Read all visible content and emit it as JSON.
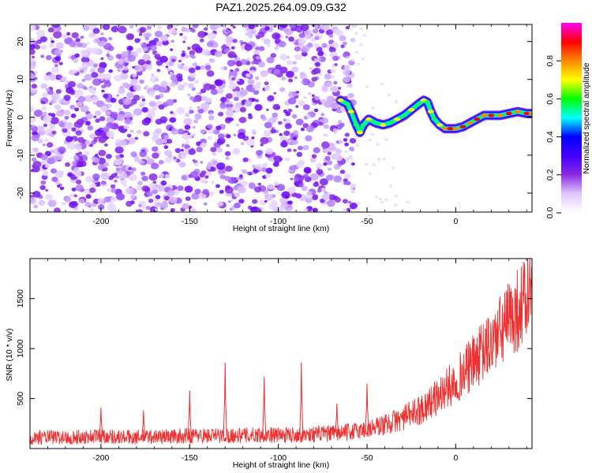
{
  "title": "PAZ1.2025.264.09.09.G32",
  "chart_data": [
    {
      "type": "heatmap",
      "xlabel": "Height of straight line (km)",
      "ylabel": "Frequency (Hz)",
      "xlim": [
        -240,
        43
      ],
      "ylim": [
        -25,
        24.5
      ],
      "x_ticks": [
        -200,
        -150,
        -100,
        -50,
        0
      ],
      "x_tick_labels": [
        "-200",
        "-150",
        "-100",
        "-50",
        "0"
      ],
      "y_ticks": [
        20,
        10,
        0,
        -10,
        -20
      ],
      "y_tick_labels": [
        "20",
        "10",
        "0",
        "-10",
        "-20"
      ],
      "noise_region_km": [
        -240,
        -62
      ],
      "signal_trace": {
        "x": [
          -65,
          -61,
          -59,
          -56,
          -54,
          -52,
          -49,
          -45,
          -41,
          -37,
          -33,
          -29,
          -25,
          -21,
          -18,
          -16,
          -14,
          -12,
          -9,
          -6,
          -3,
          0,
          4,
          8,
          12,
          16,
          20,
          25,
          30,
          35,
          40,
          43
        ],
        "y": [
          4.5,
          3.5,
          1.5,
          -2.0,
          -4.0,
          -2.0,
          -0.5,
          -1.5,
          -2.0,
          -1.5,
          -0.5,
          0.5,
          2.0,
          3.5,
          4.5,
          4.0,
          1.5,
          -0.5,
          -2.0,
          -3.0,
          -3.0,
          -3.0,
          -2.5,
          -1.5,
          -0.5,
          0.5,
          0.5,
          0.5,
          1.0,
          1.5,
          1.0,
          1.0
        ]
      },
      "colorbar": {
        "label": "Normalized spectral amplitude",
        "range": [
          0,
          1
        ],
        "ticks": [
          0.0,
          0.2,
          0.4,
          0.6,
          0.8
        ],
        "tick_labels": [
          "0.0",
          "0.2",
          "0.4",
          "0.6",
          "0.8"
        ],
        "colors": [
          "#ffffff",
          "#e0c8ff",
          "#8a2be2",
          "#4400ff",
          "#0000ff",
          "#00ffff",
          "#00ff00",
          "#ffff00",
          "#ff8800",
          "#ff0000",
          "#ff00ff"
        ]
      }
    },
    {
      "type": "line",
      "xlabel": "Height of straight line (km)",
      "ylabel": "SNR (10 * v/v)",
      "xlim": [
        -240,
        43
      ],
      "ylim": [
        0,
        1900
      ],
      "x_ticks": [
        -200,
        -150,
        -100,
        -50,
        0
      ],
      "x_tick_labels": [
        "-200",
        "-150",
        "-100",
        "-50",
        "0"
      ],
      "y_ticks": [
        500,
        1000,
        1500
      ],
      "y_tick_labels": [
        "500",
        "1000",
        "1500"
      ],
      "color": "#f03030",
      "series": [
        {
          "name": "SNR",
          "x": [
            -240,
            -230,
            -220,
            -210,
            -200,
            -190,
            -180,
            -170,
            -160,
            -150,
            -140,
            -130,
            -120,
            -110,
            -100,
            -90,
            -80,
            -70,
            -60,
            -50,
            -40,
            -30,
            -20,
            -10,
            0,
            10,
            20,
            30,
            40,
            43
          ],
          "values": [
            110,
            115,
            110,
            115,
            130,
            115,
            115,
            120,
            120,
            130,
            130,
            130,
            130,
            140,
            135,
            140,
            145,
            150,
            165,
            190,
            240,
            300,
            390,
            520,
            680,
            860,
            1050,
            1280,
            1500,
            1600
          ]
        }
      ],
      "spikes": {
        "x": [
          -200,
          -176,
          -150,
          -130,
          -108,
          -87,
          -67,
          -50
        ],
        "values": [
          410,
          380,
          580,
          860,
          720,
          860,
          450,
          650
        ]
      }
    }
  ]
}
